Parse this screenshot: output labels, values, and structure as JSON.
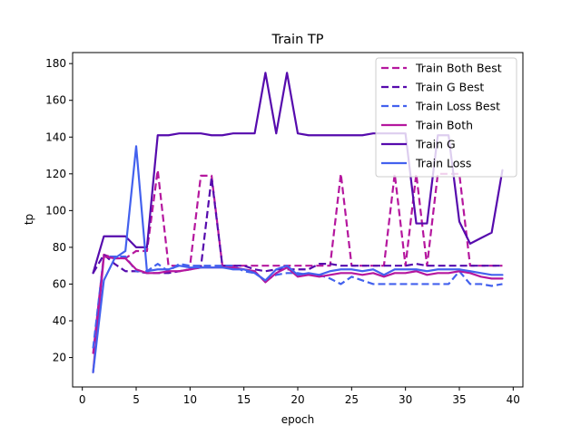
{
  "chart_data": {
    "type": "line",
    "title": "Train TP",
    "xlabel": "epoch",
    "ylabel": "tp",
    "xlim": [
      -0.9,
      40.9
    ],
    "ylim": [
      4,
      186
    ],
    "xticks": [
      0,
      5,
      10,
      15,
      20,
      25,
      30,
      35,
      40
    ],
    "yticks": [
      20,
      40,
      60,
      80,
      100,
      120,
      140,
      160,
      180
    ],
    "grid": false,
    "legend_position": "top-right",
    "x": [
      1,
      2,
      3,
      4,
      5,
      6,
      7,
      8,
      9,
      10,
      11,
      12,
      13,
      14,
      15,
      16,
      17,
      18,
      19,
      20,
      21,
      22,
      23,
      24,
      25,
      26,
      27,
      28,
      29,
      30,
      31,
      32,
      33,
      34,
      35,
      36,
      37,
      38,
      39
    ],
    "series": [
      {
        "name": "Train Both Best",
        "color": "#b5179e",
        "dash": true,
        "values": [
          22,
          76,
          74,
          74,
          78,
          78,
          122,
          70,
          70,
          70,
          119,
          119,
          70,
          70,
          70,
          70,
          70,
          70,
          70,
          70,
          70,
          70,
          70,
          120,
          70,
          70,
          70,
          70,
          120,
          70,
          120,
          70,
          120,
          120,
          120,
          70,
          70,
          70,
          70
        ]
      },
      {
        "name": "Train G Best",
        "color": "#560bad",
        "dash": true,
        "values": [
          66,
          76,
          71,
          67,
          67,
          66,
          66,
          66,
          67,
          68,
          69,
          118,
          70,
          70,
          70,
          68,
          67,
          68,
          68,
          68,
          68,
          71,
          71,
          70,
          70,
          70,
          70,
          70,
          70,
          70,
          71,
          70,
          70,
          70,
          70,
          70,
          70,
          70,
          70
        ]
      },
      {
        "name": "Train Loss Best",
        "color": "#4361ee",
        "dash": true,
        "values": [
          25,
          75,
          75,
          75,
          67,
          67,
          71,
          67,
          71,
          70,
          70,
          70,
          70,
          70,
          67,
          66,
          62,
          65,
          66,
          66,
          65,
          65,
          63,
          60,
          64,
          62,
          60,
          60,
          60,
          60,
          60,
          60,
          60,
          60,
          67,
          60,
          60,
          59,
          60
        ]
      },
      {
        "name": "Train Both",
        "color": "#b5179e",
        "dash": false,
        "values": [
          12,
          75,
          74,
          74,
          68,
          66,
          66,
          67,
          67,
          68,
          69,
          69,
          69,
          69,
          68,
          67,
          61,
          66,
          69,
          64,
          65,
          64,
          65,
          66,
          66,
          65,
          66,
          64,
          66,
          66,
          67,
          65,
          66,
          66,
          67,
          66,
          64,
          63,
          63
        ]
      },
      {
        "name": "Train G",
        "color": "#560bad",
        "dash": false,
        "values": [
          66,
          86,
          86,
          86,
          80,
          80,
          141,
          141,
          142,
          142,
          142,
          141,
          141,
          142,
          142,
          142,
          175,
          142,
          175,
          142,
          141,
          141,
          141,
          141,
          141,
          141,
          142,
          142,
          142,
          142,
          93,
          93,
          141,
          141,
          94,
          82,
          85,
          88,
          122
        ]
      },
      {
        "name": "Train Loss",
        "color": "#4361ee",
        "dash": false,
        "values": [
          12,
          62,
          74,
          78,
          135,
          67,
          68,
          68,
          70,
          69,
          69,
          69,
          69,
          68,
          68,
          66,
          62,
          68,
          70,
          65,
          66,
          65,
          67,
          68,
          68,
          67,
          68,
          65,
          68,
          68,
          68,
          67,
          68,
          68,
          68,
          67,
          66,
          65,
          65
        ]
      }
    ]
  }
}
